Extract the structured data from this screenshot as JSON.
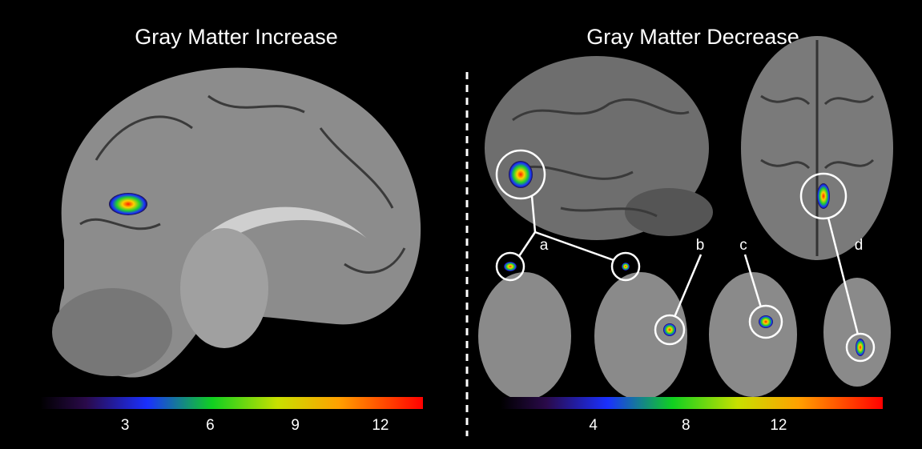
{
  "titles": [
    "Gray Matter Increase",
    "Gray Matter Decrease"
  ],
  "labels": [
    "a",
    "b",
    "c",
    "d"
  ],
  "colorbars": [
    {
      "lim": [
        0,
        13.5
      ],
      "ticks": [
        3,
        6,
        9,
        12
      ]
    },
    {
      "lim": [
        0,
        16.5
      ],
      "ticks": [
        4,
        8,
        12
      ]
    }
  ]
}
